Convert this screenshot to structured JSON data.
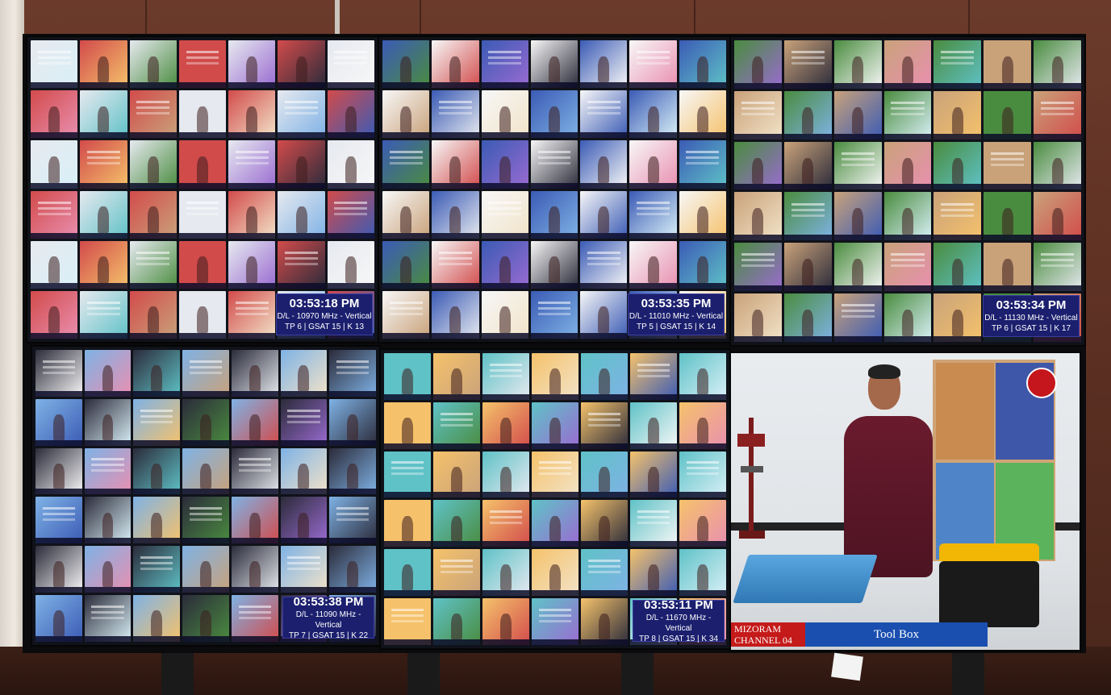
{
  "wall_screens": [
    {
      "id": "top-left",
      "time": "03:53:18 PM",
      "line1": "D/L - 10970 MHz - Vertical",
      "line2": "TP 6 | GSAT 15 | K 13"
    },
    {
      "id": "top-center",
      "time": "03:53:35 PM",
      "line1": "D/L - 11010 MHz - Vertical",
      "line2": "TP 5 | GSAT 15 | K 14"
    },
    {
      "id": "top-right",
      "time": "03:53:34 PM",
      "line1": "D/L - 11130 MHz - Vertical",
      "line2": "TP 6 | GSAT 15 | K 17"
    },
    {
      "id": "bottom-left",
      "time": "03:53:38 PM",
      "line1": "D/L - 11090 MHz - Vertical",
      "line2": "TP 7 | GSAT 15 | K 22"
    },
    {
      "id": "bottom-center",
      "time": "03:53:11 PM",
      "line1": "D/L - 11670 MHz - Vertical",
      "line2": "TP 8 | GSAT 15 | K 34"
    }
  ],
  "feature_feed": {
    "channel_line1": "MIZORAM",
    "channel_line2": "CHANNEL 04",
    "program_title": "Tool Box",
    "accent_red": "#c51a1a",
    "accent_blue": "#1a4fb0"
  }
}
